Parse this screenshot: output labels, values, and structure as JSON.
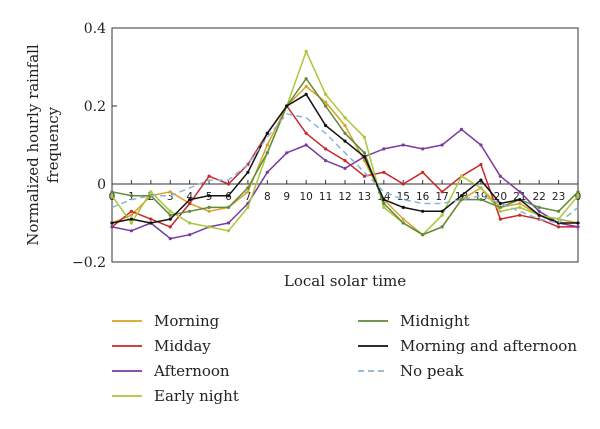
{
  "chart_data": {
    "type": "line",
    "title": "",
    "xlabel": "Local solar time",
    "ylabel": "Normalized hourly rainfall frequency",
    "x": [
      0,
      1,
      2,
      3,
      4,
      5,
      6,
      7,
      8,
      9,
      10,
      11,
      12,
      13,
      14,
      15,
      16,
      17,
      18,
      19,
      20,
      21,
      22,
      23,
      24
    ],
    "xtick_labels": [
      "0",
      "1",
      "2",
      "3",
      "4",
      "5",
      "6",
      "7",
      "8",
      "9",
      "10",
      "11",
      "12",
      "13",
      "14",
      "15",
      "16",
      "17",
      "18",
      "19",
      "20",
      "21",
      "22",
      "23",
      "0"
    ],
    "ylim": [
      -0.2,
      0.4
    ],
    "yticks": [
      -0.2,
      0,
      0.2,
      0.4
    ],
    "ytick_labels": [
      "−0.2",
      "0",
      "0.2",
      "0.4"
    ],
    "grid": false,
    "legend_position": "bottom",
    "series": [
      {
        "name": "Morning",
        "color": "#d9a227",
        "dash": false,
        "values": [
          -0.1,
          -0.08,
          -0.03,
          -0.02,
          -0.05,
          -0.07,
          -0.06,
          -0.02,
          0.1,
          0.2,
          0.25,
          0.21,
          0.15,
          0.06,
          -0.04,
          -0.09,
          -0.13,
          -0.11,
          -0.04,
          -0.01,
          -0.06,
          -0.05,
          -0.08,
          -0.09,
          -0.1
        ]
      },
      {
        "name": "Midday",
        "color": "#c8282a",
        "dash": false,
        "values": [
          -0.11,
          -0.07,
          -0.09,
          -0.11,
          -0.05,
          0.02,
          0.0,
          0.05,
          0.13,
          0.2,
          0.13,
          0.09,
          0.06,
          0.02,
          0.03,
          0.0,
          0.03,
          -0.02,
          0.02,
          0.05,
          -0.09,
          -0.08,
          -0.09,
          -0.11,
          -0.11
        ]
      },
      {
        "name": "Afternoon",
        "color": "#7a3aa0",
        "dash": false,
        "values": [
          -0.11,
          -0.12,
          -0.1,
          -0.14,
          -0.13,
          -0.11,
          -0.1,
          -0.05,
          0.03,
          0.08,
          0.1,
          0.06,
          0.04,
          0.07,
          0.09,
          0.1,
          0.09,
          0.1,
          0.14,
          0.1,
          0.02,
          -0.02,
          -0.07,
          -0.1,
          -0.11
        ]
      },
      {
        "name": "Early night",
        "color": "#a8c83a",
        "dash": false,
        "values": [
          -0.03,
          -0.1,
          -0.02,
          -0.07,
          -0.1,
          -0.11,
          -0.12,
          -0.06,
          0.08,
          0.2,
          0.34,
          0.23,
          0.17,
          0.12,
          -0.06,
          -0.1,
          -0.13,
          -0.08,
          0.02,
          -0.01,
          -0.07,
          -0.06,
          -0.08,
          -0.09,
          -0.03
        ]
      },
      {
        "name": "Midnight",
        "color": "#5f8a3a",
        "dash": false,
        "values": [
          -0.02,
          -0.03,
          -0.03,
          -0.08,
          -0.07,
          -0.06,
          -0.06,
          -0.01,
          0.08,
          0.2,
          0.27,
          0.2,
          0.13,
          0.08,
          -0.05,
          -0.1,
          -0.13,
          -0.11,
          -0.04,
          -0.04,
          -0.06,
          -0.04,
          -0.06,
          -0.07,
          -0.02
        ]
      },
      {
        "name": "Morning and afternoon",
        "color": "#111111",
        "dash": false,
        "values": [
          -0.1,
          -0.09,
          -0.1,
          -0.09,
          -0.04,
          -0.03,
          -0.03,
          0.03,
          0.13,
          0.2,
          0.23,
          0.15,
          0.11,
          0.07,
          -0.04,
          -0.06,
          -0.07,
          -0.07,
          -0.03,
          0.01,
          -0.05,
          -0.04,
          -0.08,
          -0.1,
          -0.1
        ]
      },
      {
        "name": "No peak",
        "color": "#8ab4d6",
        "dash": true,
        "values": [
          -0.06,
          -0.04,
          -0.03,
          -0.03,
          -0.01,
          0.01,
          0.01,
          0.05,
          0.12,
          0.18,
          0.17,
          0.13,
          0.08,
          0.03,
          -0.02,
          -0.04,
          -0.05,
          -0.05,
          -0.04,
          -0.03,
          -0.05,
          -0.07,
          -0.09,
          -0.1,
          -0.06
        ]
      }
    ]
  }
}
